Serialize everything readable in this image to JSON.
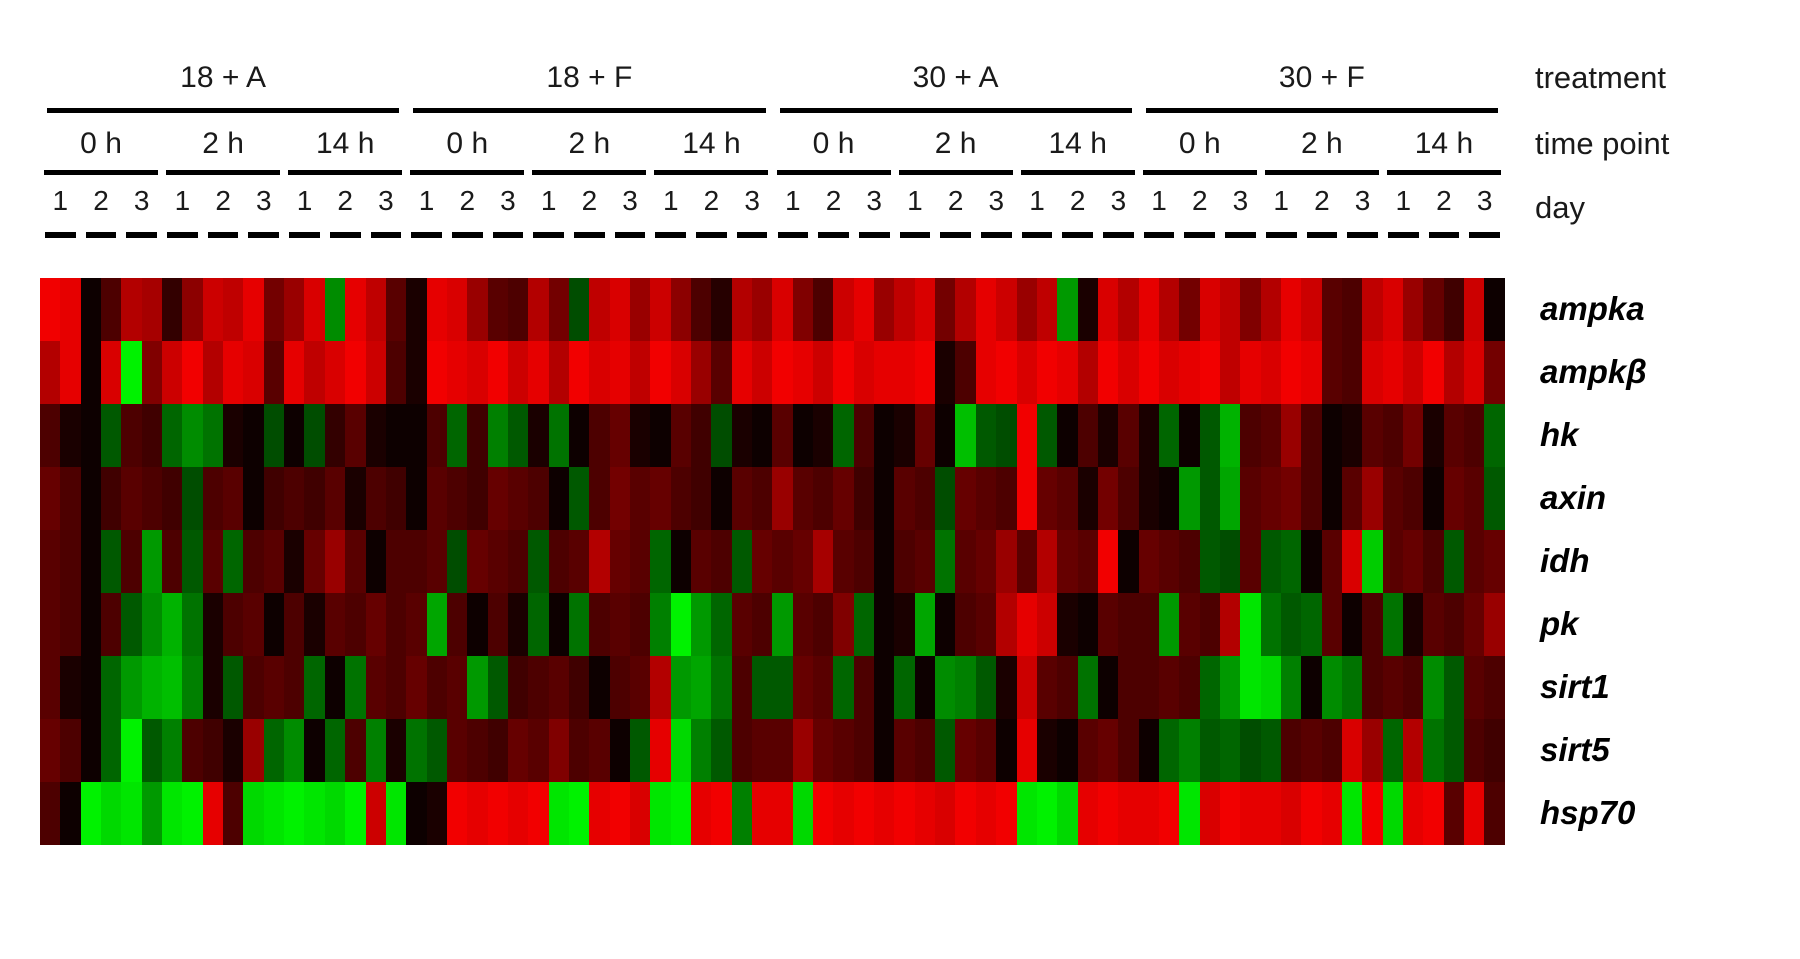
{
  "header": {
    "treatment_label": "treatment",
    "time_point_label": "time point",
    "day_label": "day",
    "treatments": [
      "18 + A",
      "18 + F",
      "30 + A",
      "30 + F"
    ],
    "time_points": [
      "0 h",
      "2 h",
      "14 h"
    ],
    "days": [
      "1",
      "2",
      "3"
    ]
  },
  "chart_data": {
    "type": "heatmap",
    "title": "",
    "legend_position": "none",
    "grid": false,
    "rows": [
      "ampka",
      "ampkβ",
      "hk",
      "axin",
      "idh",
      "pk",
      "sirt1",
      "sirt5",
      "hsp70"
    ],
    "column_structure": {
      "treatments": [
        "18 + A",
        "18 + F",
        "30 + A",
        "30 + F"
      ],
      "time_points_per_treatment": [
        "0 h",
        "2 h",
        "14 h"
      ],
      "days_per_time_point": [
        "1",
        "2",
        "3"
      ],
      "replicate_columns_per_day": 2,
      "total_columns": 72
    },
    "color_scale": {
      "positive": "#ff0000",
      "negative": "#00ff00",
      "zero": "#000000",
      "range": [
        -1,
        1
      ],
      "note": "red = up-regulated, green = down-regulated, black = unchanged"
    },
    "values": {
      "ampka": [
        0.95,
        0.9,
        0.05,
        0.3,
        0.7,
        0.65,
        0.2,
        0.55,
        0.8,
        0.75,
        0.9,
        0.45,
        0.6,
        0.85,
        -0.55,
        0.9,
        0.75,
        0.35,
        0.1,
        0.9,
        0.85,
        0.6,
        0.35,
        0.3,
        0.7,
        0.45,
        -0.3,
        0.75,
        0.85,
        0.6,
        0.8,
        0.55,
        0.3,
        0.15,
        0.7,
        0.6,
        0.85,
        0.5,
        0.3,
        0.8,
        0.9,
        0.6,
        0.75,
        0.85,
        0.45,
        0.7,
        0.9,
        0.8,
        0.6,
        0.75,
        -0.6,
        0.1,
        0.85,
        0.7,
        0.9,
        0.7,
        0.45,
        0.85,
        0.75,
        0.5,
        0.7,
        0.9,
        0.8,
        0.35,
        0.3,
        0.75,
        0.85,
        0.6,
        0.4,
        0.25,
        0.8,
        0.05
      ],
      "ampkβ": [
        0.7,
        0.9,
        0.05,
        0.85,
        -0.95,
        0.5,
        0.8,
        0.95,
        0.7,
        0.9,
        0.85,
        0.35,
        0.9,
        0.75,
        0.85,
        0.95,
        0.8,
        0.3,
        0.1,
        0.95,
        0.9,
        0.85,
        0.95,
        0.8,
        0.9,
        0.7,
        0.95,
        0.85,
        0.9,
        0.75,
        0.95,
        0.85,
        0.6,
        0.35,
        0.9,
        0.8,
        0.95,
        0.9,
        0.8,
        0.95,
        0.85,
        0.9,
        0.9,
        0.95,
        0.1,
        0.3,
        0.9,
        0.95,
        0.85,
        0.95,
        0.9,
        0.7,
        0.95,
        0.85,
        0.95,
        0.85,
        0.9,
        0.95,
        0.75,
        0.9,
        0.85,
        0.95,
        0.9,
        0.35,
        0.3,
        0.85,
        0.9,
        0.8,
        0.95,
        0.7,
        0.85,
        0.45
      ],
      "hk": [
        0.3,
        0.1,
        0.05,
        -0.35,
        0.3,
        0.25,
        -0.4,
        -0.55,
        -0.45,
        0.1,
        0.05,
        -0.3,
        0.05,
        -0.3,
        0.2,
        0.35,
        0.1,
        0.05,
        0.05,
        0.3,
        -0.4,
        0.25,
        -0.5,
        -0.35,
        0.1,
        -0.45,
        0.05,
        0.3,
        0.4,
        0.1,
        0.05,
        0.35,
        0.25,
        -0.3,
        0.1,
        0.05,
        0.35,
        0.05,
        0.1,
        -0.4,
        0.3,
        0.05,
        0.1,
        0.4,
        0.05,
        -0.75,
        -0.35,
        -0.3,
        0.95,
        -0.35,
        0.05,
        0.3,
        0.1,
        0.35,
        0.1,
        -0.4,
        0.05,
        -0.35,
        -0.7,
        0.3,
        0.35,
        0.6,
        0.3,
        0.05,
        0.1,
        0.35,
        0.3,
        0.45,
        0.1,
        0.35,
        0.3,
        -0.4
      ],
      "axin": [
        0.4,
        0.3,
        0.05,
        0.25,
        0.35,
        0.3,
        0.25,
        -0.3,
        0.3,
        0.35,
        0.05,
        0.25,
        0.3,
        0.25,
        0.35,
        0.1,
        0.3,
        0.25,
        0.05,
        0.35,
        0.3,
        0.25,
        0.4,
        0.35,
        0.3,
        0.05,
        -0.35,
        0.3,
        0.45,
        0.35,
        0.4,
        0.3,
        0.25,
        0.05,
        0.35,
        0.3,
        0.6,
        0.35,
        0.3,
        0.4,
        0.25,
        0.05,
        0.35,
        0.3,
        -0.3,
        0.4,
        0.35,
        0.3,
        0.95,
        0.4,
        0.35,
        0.1,
        0.45,
        0.3,
        0.1,
        0.05,
        -0.6,
        -0.35,
        -0.65,
        0.35,
        0.4,
        0.45,
        0.3,
        0.05,
        0.35,
        0.6,
        0.35,
        0.3,
        0.05,
        0.4,
        0.35,
        -0.35
      ],
      "idh": [
        0.35,
        0.3,
        0.05,
        -0.35,
        0.3,
        -0.6,
        0.3,
        -0.35,
        0.35,
        -0.4,
        0.3,
        0.35,
        0.1,
        0.4,
        0.6,
        0.35,
        0.05,
        0.3,
        0.3,
        0.35,
        -0.3,
        0.4,
        0.35,
        0.3,
        -0.35,
        0.3,
        0.35,
        0.7,
        0.4,
        0.35,
        -0.4,
        0.05,
        0.35,
        0.3,
        -0.35,
        0.4,
        0.35,
        0.4,
        0.65,
        0.35,
        0.3,
        0.05,
        0.3,
        0.35,
        -0.45,
        0.35,
        0.4,
        0.6,
        0.35,
        0.7,
        0.4,
        0.35,
        0.95,
        0.05,
        0.4,
        0.35,
        0.3,
        -0.35,
        -0.3,
        0.35,
        -0.35,
        -0.4,
        0.05,
        0.35,
        0.85,
        -0.8,
        0.35,
        0.4,
        0.3,
        -0.35,
        0.35,
        0.4
      ],
      "pk": [
        0.35,
        0.3,
        0.05,
        0.3,
        -0.35,
        -0.55,
        -0.7,
        -0.45,
        0.1,
        0.3,
        0.35,
        0.05,
        0.3,
        0.1,
        0.35,
        0.3,
        0.4,
        0.3,
        0.35,
        -0.65,
        0.3,
        0.05,
        0.3,
        0.1,
        -0.4,
        0.05,
        -0.45,
        0.3,
        0.35,
        0.3,
        -0.5,
        -0.95,
        -0.6,
        -0.4,
        0.35,
        0.3,
        -0.6,
        0.35,
        0.3,
        0.5,
        -0.4,
        0.05,
        0.1,
        -0.65,
        0.05,
        0.3,
        0.35,
        0.7,
        0.9,
        0.8,
        0.1,
        0.05,
        0.35,
        0.3,
        0.3,
        -0.6,
        0.35,
        0.3,
        0.7,
        -0.9,
        -0.45,
        -0.35,
        -0.4,
        0.35,
        0.05,
        0.3,
        -0.45,
        0.1,
        0.35,
        0.3,
        0.4,
        0.6
      ],
      "sirt1": [
        0.35,
        0.1,
        0.05,
        -0.4,
        -0.6,
        -0.7,
        -0.75,
        -0.5,
        0.1,
        -0.35,
        0.3,
        0.35,
        0.3,
        -0.4,
        0.05,
        -0.45,
        0.35,
        0.3,
        0.4,
        0.3,
        0.35,
        -0.6,
        -0.35,
        0.25,
        0.3,
        0.35,
        0.25,
        0.05,
        0.3,
        0.35,
        0.7,
        -0.6,
        -0.65,
        -0.45,
        0.3,
        -0.35,
        -0.35,
        0.4,
        0.35,
        -0.4,
        0.3,
        0.05,
        -0.4,
        0.05,
        -0.55,
        -0.5,
        -0.35,
        0.1,
        0.8,
        0.35,
        0.3,
        -0.45,
        0.05,
        0.3,
        0.3,
        0.35,
        0.3,
        -0.4,
        -0.6,
        -0.9,
        -0.85,
        -0.5,
        0.05,
        -0.55,
        -0.45,
        0.3,
        0.35,
        0.3,
        -0.55,
        -0.35,
        0.35,
        0.3
      ],
      "sirt5": [
        0.4,
        0.3,
        0.05,
        -0.4,
        -0.95,
        -0.35,
        -0.5,
        0.3,
        0.25,
        0.1,
        0.6,
        -0.4,
        -0.55,
        0.05,
        -0.4,
        0.3,
        -0.5,
        0.1,
        -0.45,
        -0.35,
        0.35,
        0.3,
        0.25,
        0.4,
        0.35,
        0.5,
        0.3,
        0.35,
        0.05,
        -0.35,
        0.9,
        -0.85,
        -0.5,
        -0.35,
        0.3,
        0.35,
        0.35,
        0.6,
        0.4,
        0.35,
        0.3,
        0.05,
        0.35,
        0.3,
        -0.35,
        0.4,
        0.35,
        0.05,
        0.9,
        0.1,
        0.05,
        0.35,
        0.4,
        0.3,
        0.05,
        -0.4,
        -0.5,
        -0.35,
        -0.4,
        -0.3,
        -0.35,
        0.3,
        0.35,
        0.3,
        0.85,
        0.6,
        -0.4,
        0.7,
        -0.45,
        -0.35,
        0.3,
        0.25
      ],
      "hsp70": [
        0.3,
        0.05,
        -0.95,
        -0.85,
        -0.9,
        -0.6,
        -0.9,
        -0.95,
        0.9,
        0.3,
        -0.85,
        -0.9,
        -0.95,
        -0.9,
        -0.85,
        -0.95,
        0.8,
        -0.9,
        0.05,
        0.1,
        0.95,
        0.9,
        0.95,
        0.9,
        0.95,
        -0.9,
        -0.95,
        0.9,
        0.95,
        0.85,
        -0.9,
        -0.95,
        0.9,
        0.95,
        -0.5,
        0.9,
        0.9,
        -0.85,
        0.95,
        0.9,
        0.95,
        0.9,
        0.95,
        0.9,
        0.85,
        0.95,
        0.9,
        0.95,
        -0.9,
        -0.95,
        -0.85,
        0.9,
        0.95,
        0.9,
        0.9,
        0.95,
        -0.9,
        0.85,
        0.95,
        0.9,
        0.9,
        0.85,
        0.95,
        0.9,
        -0.9,
        0.95,
        -0.85,
        0.9,
        0.95,
        0.35,
        0.9,
        0.3
      ]
    }
  }
}
